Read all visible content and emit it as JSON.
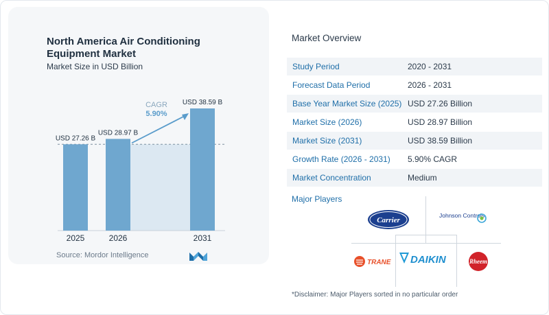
{
  "chart_card": {
    "title": "North America Air Conditioning Equipment Market",
    "subtitle": "Market Size in USD Billion",
    "source": "Source:  Mordor Intelligence"
  },
  "chart_data": {
    "type": "bar",
    "title": "North America Air Conditioning Equipment Market",
    "subtitle": "Market Size in USD Billion",
    "categories": [
      "2025",
      "2026",
      "2031"
    ],
    "values": [
      27.26,
      28.97,
      38.59
    ],
    "data_labels": [
      "USD 27.26 B",
      "USD 28.97 B",
      "USD 38.59 B"
    ],
    "cagr_label": "CAGR",
    "cagr_value": "5.90%",
    "bar_colors": [
      "#6fa7cf",
      "#6fa7cf",
      "#6fa7cf"
    ],
    "highlight_color": "#dce8f2",
    "arrow_color": "#5a9ccb"
  },
  "overview": {
    "title": "Market Overview",
    "rows": [
      {
        "label": "Study Period",
        "value": "2020 - 2031"
      },
      {
        "label": "Forecast Data Period",
        "value": "2026 - 2031"
      },
      {
        "label": "Base Year Market Size (2025)",
        "value": "USD 27.26 Billion"
      },
      {
        "label": "Market Size (2026)",
        "value": "USD 28.97 Billion"
      },
      {
        "label": "Market Size (2031)",
        "value": "USD 38.59 Billion"
      },
      {
        "label": "Growth Rate (2026 - 2031)",
        "value": "5.90% CAGR"
      },
      {
        "label": "Market Concentration",
        "value": "Medium"
      }
    ]
  },
  "players": {
    "title": "Major Players",
    "names": [
      "Carrier",
      "Johnson Controls",
      "TRANE",
      "DAIKIN",
      "Rheem"
    ],
    "disclaimer": "*Disclaimer: Major Players sorted in no particular order"
  },
  "colors": {
    "accent": "#1e6ea8",
    "bar": "#6fa7cf",
    "carrier": "#1b3f8f",
    "daikin": "#1f9ad6",
    "trane": "#e8502a",
    "rheem": "#d1232a"
  }
}
